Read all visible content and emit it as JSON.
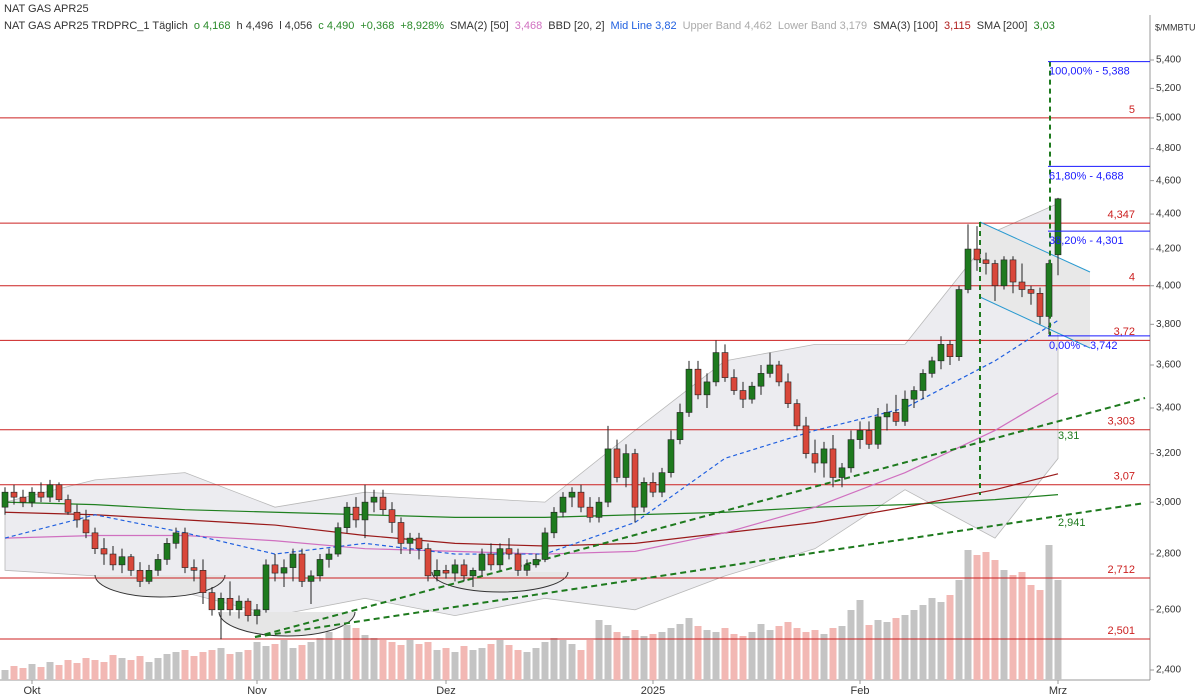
{
  "chart_data": {
    "type": "candlestick",
    "title": "NAT GAS APR25",
    "y_axis_label": "$/MMBTU",
    "legend_items": [
      {
        "text": "NAT GAS APR25 TRDPRC_1 Täglich",
        "color": "#333333"
      },
      {
        "text": "o 4,168",
        "color": "#2a8a2a"
      },
      {
        "text": "h 4,496",
        "color": "#333333"
      },
      {
        "text": "l 4,056",
        "color": "#333333"
      },
      {
        "text": "c 4,490",
        "color": "#2a8a2a"
      },
      {
        "text": "+0,368",
        "color": "#2a8a2a"
      },
      {
        "text": "+8,928%",
        "color": "#2a8a2a"
      },
      {
        "text": "SMA(2) [50]",
        "color": "#333333"
      },
      {
        "text": "3,468",
        "color": "#d070c0"
      },
      {
        "text": "BBD [20, 2]",
        "color": "#333333"
      },
      {
        "text": "Mid Line 3,82",
        "color": "#2060e0"
      },
      {
        "text": "Upper Band 4,462",
        "color": "#aaaaaa"
      },
      {
        "text": "Lower Band 3,179",
        "color": "#aaaaaa"
      },
      {
        "text": "SMA(3) [100]",
        "color": "#333333"
      },
      {
        "text": "3,115",
        "color": "#b02020"
      },
      {
        "text": "SMA [200]",
        "color": "#333333"
      },
      {
        "text": "3,03",
        "color": "#208020"
      }
    ],
    "log_scale": true,
    "ylim": [
      2.337,
      5.733
    ],
    "yticks": [
      {
        "value": 2.4,
        "label": "2,400"
      },
      {
        "value": 2.6,
        "label": "2,600"
      },
      {
        "value": 2.8,
        "label": "2,800"
      },
      {
        "value": 3.0,
        "label": "3,000"
      },
      {
        "value": 3.2,
        "label": "3,200"
      },
      {
        "value": 3.4,
        "label": "3,400"
      },
      {
        "value": 3.6,
        "label": "3,600"
      },
      {
        "value": 3.8,
        "label": "3,800"
      },
      {
        "value": 4.0,
        "label": "4,000"
      },
      {
        "value": 4.2,
        "label": "4,200"
      },
      {
        "value": 4.4,
        "label": "4,400"
      },
      {
        "value": 4.6,
        "label": "4,600"
      },
      {
        "value": 4.8,
        "label": "4,800"
      },
      {
        "value": 5.0,
        "label": "5,000"
      },
      {
        "value": 5.2,
        "label": "5,200"
      },
      {
        "value": 5.4,
        "label": "5,400"
      }
    ],
    "up_color": "#1e7a1e",
    "down_color": "#d9473a",
    "categories": [
      null,
      null,
      null,
      "Okt",
      null,
      null,
      null,
      null,
      null,
      null,
      null,
      null,
      null,
      null,
      null,
      null,
      null,
      null,
      null,
      null,
      null,
      null,
      null,
      null,
      null,
      null,
      null,
      null,
      "Nov",
      null,
      null,
      null,
      null,
      null,
      null,
      null,
      null,
      null,
      null,
      null,
      null,
      null,
      null,
      null,
      null,
      null,
      null,
      null,
      null,
      "Dez",
      null,
      null,
      null,
      null,
      null,
      null,
      null,
      null,
      null,
      null,
      null,
      null,
      null,
      null,
      null,
      null,
      null,
      null,
      null,
      null,
      null,
      null,
      "2025",
      null,
      null,
      null,
      null,
      null,
      null,
      null,
      null,
      null,
      null,
      null,
      null,
      null,
      null,
      null,
      null,
      null,
      null,
      null,
      null,
      null,
      null,
      "Feb",
      null,
      null,
      null,
      null,
      null,
      null,
      null,
      null,
      null,
      null,
      null,
      null,
      null,
      null,
      null,
      null,
      null,
      null,
      null,
      null,
      null,
      "Mrz"
    ],
    "candles": [
      [
        2.98,
        3.06,
        2.95,
        3.04
      ],
      [
        3.04,
        3.07,
        2.99,
        3.02
      ],
      [
        3.02,
        3.05,
        2.98,
        3.0
      ],
      [
        3.0,
        3.06,
        2.98,
        3.04
      ],
      [
        3.04,
        3.08,
        3.0,
        3.02
      ],
      [
        3.02,
        3.09,
        3.0,
        3.07
      ],
      [
        3.07,
        3.08,
        3.0,
        3.01
      ],
      [
        3.01,
        3.03,
        2.95,
        2.96
      ],
      [
        2.96,
        2.99,
        2.9,
        2.93
      ],
      [
        2.93,
        2.97,
        2.86,
        2.88
      ],
      [
        2.88,
        2.9,
        2.8,
        2.82
      ],
      [
        2.82,
        2.86,
        2.76,
        2.8
      ],
      [
        2.8,
        2.83,
        2.74,
        2.76
      ],
      [
        2.76,
        2.82,
        2.73,
        2.79
      ],
      [
        2.79,
        2.8,
        2.72,
        2.74
      ],
      [
        2.74,
        2.77,
        2.68,
        2.7
      ],
      [
        2.7,
        2.76,
        2.69,
        2.74
      ],
      [
        2.74,
        2.8,
        2.72,
        2.78
      ],
      [
        2.78,
        2.86,
        2.76,
        2.84
      ],
      [
        2.84,
        2.9,
        2.82,
        2.88
      ],
      [
        2.88,
        2.9,
        2.73,
        2.75
      ],
      [
        2.75,
        2.78,
        2.7,
        2.74
      ],
      [
        2.74,
        2.78,
        2.62,
        2.66
      ],
      [
        2.66,
        2.68,
        2.58,
        2.6
      ],
      [
        2.6,
        2.66,
        2.5,
        2.64
      ],
      [
        2.64,
        2.7,
        2.58,
        2.6
      ],
      [
        2.6,
        2.65,
        2.57,
        2.63
      ],
      [
        2.63,
        2.64,
        2.56,
        2.58
      ],
      [
        2.58,
        2.62,
        2.55,
        2.6
      ],
      [
        2.6,
        2.78,
        2.59,
        2.76
      ],
      [
        2.76,
        2.8,
        2.7,
        2.73
      ],
      [
        2.73,
        2.78,
        2.68,
        2.75
      ],
      [
        2.75,
        2.82,
        2.7,
        2.8
      ],
      [
        2.8,
        2.82,
        2.68,
        2.7
      ],
      [
        2.7,
        2.74,
        2.62,
        2.72
      ],
      [
        2.72,
        2.8,
        2.7,
        2.78
      ],
      [
        2.78,
        2.82,
        2.75,
        2.8
      ],
      [
        2.8,
        2.92,
        2.79,
        2.9
      ],
      [
        2.9,
        3.0,
        2.88,
        2.98
      ],
      [
        2.98,
        3.02,
        2.9,
        2.93
      ],
      [
        2.93,
        3.07,
        2.86,
        3.0
      ],
      [
        3.0,
        3.05,
        2.96,
        3.02
      ],
      [
        3.02,
        3.05,
        2.95,
        2.97
      ],
      [
        2.97,
        3.0,
        2.88,
        2.92
      ],
      [
        2.92,
        2.94,
        2.8,
        2.84
      ],
      [
        2.84,
        2.88,
        2.8,
        2.86
      ],
      [
        2.86,
        2.88,
        2.78,
        2.82
      ],
      [
        2.82,
        2.84,
        2.7,
        2.72
      ],
      [
        2.72,
        2.78,
        2.7,
        2.74
      ],
      [
        2.74,
        2.76,
        2.71,
        2.73
      ],
      [
        2.73,
        2.78,
        2.7,
        2.76
      ],
      [
        2.76,
        2.78,
        2.7,
        2.72
      ],
      [
        2.72,
        2.75,
        2.68,
        2.74
      ],
      [
        2.74,
        2.82,
        2.72,
        2.8
      ],
      [
        2.8,
        2.84,
        2.74,
        2.76
      ],
      [
        2.76,
        2.84,
        2.74,
        2.82
      ],
      [
        2.82,
        2.86,
        2.78,
        2.8
      ],
      [
        2.8,
        2.82,
        2.72,
        2.74
      ],
      [
        2.74,
        2.78,
        2.72,
        2.76
      ],
      [
        2.76,
        2.8,
        2.75,
        2.78
      ],
      [
        2.78,
        2.9,
        2.77,
        2.88
      ],
      [
        2.88,
        2.98,
        2.86,
        2.96
      ],
      [
        2.96,
        3.04,
        2.94,
        3.02
      ],
      [
        3.02,
        3.06,
        2.98,
        3.04
      ],
      [
        3.04,
        3.07,
        2.96,
        2.98
      ],
      [
        2.98,
        3.02,
        2.92,
        2.94
      ],
      [
        2.94,
        3.02,
        2.92,
        3.0
      ],
      [
        3.0,
        3.32,
        2.98,
        3.22
      ],
      [
        3.22,
        3.26,
        3.08,
        3.1
      ],
      [
        3.1,
        3.24,
        3.06,
        3.2
      ],
      [
        3.2,
        3.22,
        2.92,
        2.98
      ],
      [
        2.98,
        3.1,
        2.96,
        3.08
      ],
      [
        3.08,
        3.12,
        3.02,
        3.04
      ],
      [
        3.04,
        3.14,
        3.02,
        3.12
      ],
      [
        3.12,
        3.3,
        3.1,
        3.26
      ],
      [
        3.26,
        3.42,
        3.24,
        3.38
      ],
      [
        3.38,
        3.62,
        3.36,
        3.58
      ],
      [
        3.58,
        3.62,
        3.44,
        3.46
      ],
      [
        3.46,
        3.56,
        3.4,
        3.52
      ],
      [
        3.52,
        3.72,
        3.5,
        3.66
      ],
      [
        3.66,
        3.7,
        3.52,
        3.54
      ],
      [
        3.54,
        3.58,
        3.46,
        3.48
      ],
      [
        3.48,
        3.52,
        3.4,
        3.44
      ],
      [
        3.44,
        3.52,
        3.42,
        3.5
      ],
      [
        3.5,
        3.6,
        3.46,
        3.56
      ],
      [
        3.56,
        3.66,
        3.54,
        3.6
      ],
      [
        3.6,
        3.62,
        3.5,
        3.52
      ],
      [
        3.52,
        3.56,
        3.4,
        3.42
      ],
      [
        3.42,
        3.44,
        3.3,
        3.32
      ],
      [
        3.32,
        3.36,
        3.18,
        3.2
      ],
      [
        3.2,
        3.26,
        3.12,
        3.16
      ],
      [
        3.16,
        3.25,
        3.1,
        3.22
      ],
      [
        3.22,
        3.28,
        3.06,
        3.1
      ],
      [
        3.1,
        3.16,
        3.06,
        3.14
      ],
      [
        3.14,
        3.3,
        3.12,
        3.26
      ],
      [
        3.26,
        3.34,
        3.22,
        3.3
      ],
      [
        3.3,
        3.34,
        3.22,
        3.24
      ],
      [
        3.24,
        3.4,
        3.22,
        3.36
      ],
      [
        3.36,
        3.42,
        3.3,
        3.38
      ],
      [
        3.38,
        3.46,
        3.32,
        3.34
      ],
      [
        3.34,
        3.48,
        3.32,
        3.44
      ],
      [
        3.44,
        3.5,
        3.4,
        3.48
      ],
      [
        3.48,
        3.58,
        3.44,
        3.56
      ],
      [
        3.56,
        3.64,
        3.54,
        3.62
      ],
      [
        3.62,
        3.74,
        3.58,
        3.7
      ],
      [
        3.7,
        3.72,
        3.6,
        3.64
      ],
      [
        3.64,
        4.0,
        3.62,
        3.98
      ],
      [
        3.98,
        4.34,
        3.96,
        4.2
      ],
      [
        4.2,
        4.33,
        4.08,
        4.14
      ],
      [
        4.14,
        4.18,
        4.06,
        4.12
      ],
      [
        4.12,
        4.14,
        3.92,
        4.0
      ],
      [
        4.0,
        4.16,
        3.98,
        4.14
      ],
      [
        4.14,
        4.16,
        3.96,
        4.02
      ],
      [
        4.02,
        4.12,
        3.94,
        3.98
      ],
      [
        3.98,
        4.0,
        3.9,
        3.96
      ],
      [
        3.96,
        3.99,
        3.8,
        3.84
      ],
      [
        3.84,
        4.14,
        3.75,
        4.12
      ],
      [
        4.168,
        4.496,
        4.056,
        4.49
      ]
    ],
    "volume": [
      10,
      14,
      12,
      16,
      13,
      18,
      15,
      20,
      17,
      22,
      20,
      18,
      25,
      22,
      20,
      24,
      18,
      22,
      26,
      28,
      30,
      24,
      28,
      30,
      32,
      26,
      28,
      30,
      38,
      34,
      36,
      40,
      32,
      35,
      38,
      42,
      48,
      40,
      55,
      52,
      45,
      42,
      40,
      38,
      35,
      40,
      36,
      38,
      30,
      32,
      28,
      34,
      30,
      32,
      36,
      40,
      35,
      30,
      28,
      32,
      38,
      42,
      40,
      36,
      30,
      40,
      60,
      55,
      48,
      44,
      50,
      44,
      46,
      48,
      52,
      56,
      62,
      54,
      50,
      48,
      52,
      46,
      44,
      48,
      56,
      50,
      54,
      58,
      52,
      48,
      50,
      46,
      52,
      54,
      70,
      80,
      55,
      60,
      58,
      62,
      65,
      70,
      75,
      82,
      78,
      85,
      100,
      130,
      125,
      128,
      120,
      110,
      105,
      108,
      95,
      90,
      135,
      100
    ],
    "up_volume_color": "#c4c4c4",
    "down_volume_color": "#f2b8b4",
    "overlay_x": [
      0,
      10,
      20,
      30,
      40,
      50,
      60,
      70,
      80,
      90,
      100,
      110,
      117
    ],
    "overlays": [
      {
        "name": "SMA [200]",
        "color": "#208020",
        "values": [
          3.0,
          2.99,
          2.97,
          2.96,
          2.95,
          2.94,
          2.94,
          2.95,
          2.96,
          2.98,
          2.99,
          3.01,
          3.03
        ]
      },
      {
        "name": "SMA(3) [100]",
        "color": "#9a1a1a",
        "values": [
          2.96,
          2.95,
          2.93,
          2.91,
          2.87,
          2.84,
          2.83,
          2.84,
          2.88,
          2.92,
          2.98,
          3.05,
          3.115
        ]
      },
      {
        "name": "SMA(2) [50]",
        "color": "#d070c0",
        "values": [
          2.86,
          2.87,
          2.87,
          2.85,
          2.82,
          2.81,
          2.8,
          2.81,
          2.88,
          2.98,
          3.12,
          3.3,
          3.468
        ]
      },
      {
        "name": "Mid Line",
        "color": "#2060e0",
        "dashed": true,
        "values": [
          2.86,
          2.95,
          2.88,
          2.8,
          2.84,
          2.8,
          2.8,
          2.92,
          3.18,
          3.3,
          3.4,
          3.62,
          3.82
        ]
      }
    ],
    "bands": {
      "upper": [
        3.0,
        3.09,
        3.12,
        2.98,
        3.04,
        3.02,
        3.0,
        3.3,
        3.62,
        3.7,
        3.7,
        4.3,
        4.462
      ],
      "lower": [
        2.74,
        2.72,
        2.66,
        2.58,
        2.64,
        2.58,
        2.64,
        2.6,
        2.72,
        2.82,
        3.05,
        2.86,
        3.179
      ],
      "color": "#b8b8b8"
    },
    "levels": [
      {
        "value": 5.0,
        "label": "5"
      },
      {
        "value": 4.347,
        "label": "4,347"
      },
      {
        "value": 4.0,
        "label": "4"
      },
      {
        "value": 3.72,
        "label": "3,72"
      },
      {
        "value": 3.303,
        "label": "3,303"
      },
      {
        "value": 3.07,
        "label": "3,07"
      },
      {
        "value": 2.712,
        "label": "2,712"
      },
      {
        "value": 2.501,
        "label": "2,501"
      }
    ],
    "level_color": "#cc2020",
    "fib_levels": [
      {
        "value": 5.388,
        "label": "100,00% - 5,388"
      },
      {
        "value": 4.688,
        "label": "61,80% - 4,688"
      },
      {
        "value": 4.301,
        "label": "38,20% - 4,301"
      },
      {
        "value": 3.742,
        "label": "0,00% - 3,742"
      }
    ],
    "fib_color": "#1a1aff",
    "trend_labels": [
      "3,31",
      "2,941"
    ]
  }
}
